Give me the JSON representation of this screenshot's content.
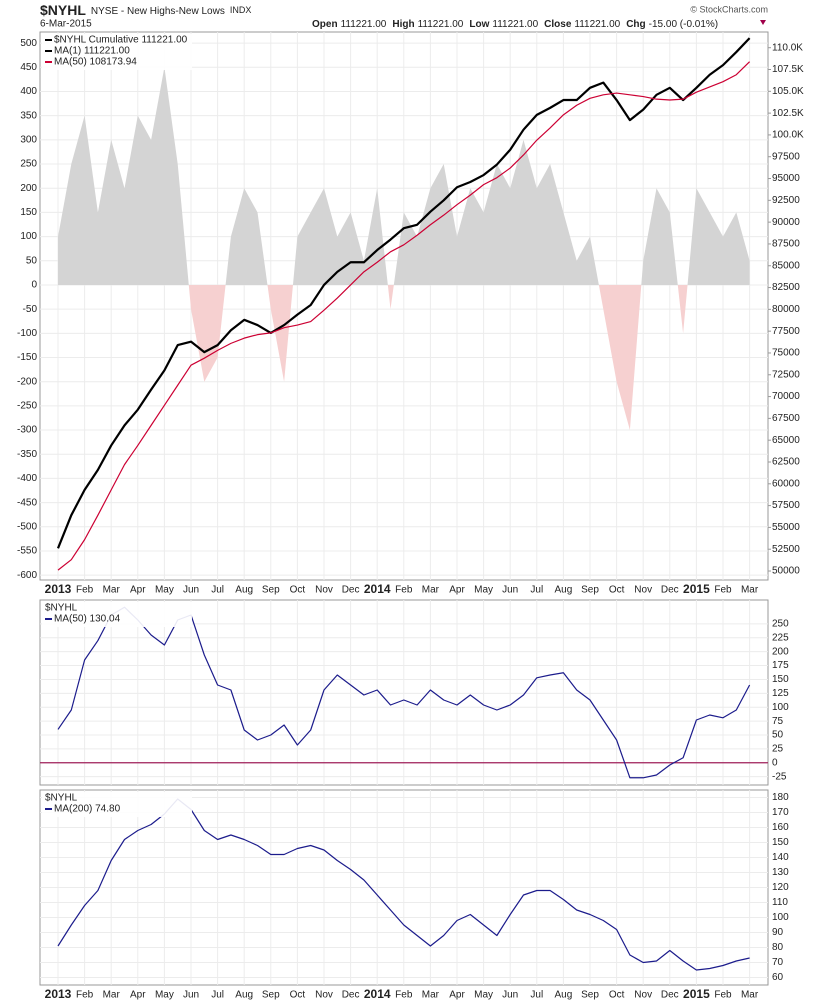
{
  "header": {
    "symbol": "$NYHL",
    "description": "NYSE - New Highs-New Lows",
    "exchange": "INDX",
    "date": "6-Mar-2015",
    "ohlc": [
      {
        "label": "Open",
        "value": "111221.00"
      },
      {
        "label": "High",
        "value": "111221.00"
      },
      {
        "label": "Low",
        "value": "111221.00"
      },
      {
        "label": "Close",
        "value": "111221.00"
      },
      {
        "label": "Chg",
        "value": "-15.00 (-0.01%)"
      }
    ],
    "watermark": "© StockCharts.com"
  },
  "chart_data": [
    {
      "type": "line",
      "legend_title": "$NYHL Cumulative 111221.00",
      "legend_title_color": "#000000",
      "grid": true,
      "y_axis_side": "left",
      "categories": [
        "2013",
        null,
        "Feb",
        null,
        "Mar",
        null,
        "Apr",
        null,
        "May",
        null,
        "Jun",
        null,
        "Jul",
        null,
        "Aug",
        null,
        "Sep",
        null,
        "Oct",
        null,
        "Nov",
        null,
        "Dec",
        null,
        "2014",
        null,
        "Feb",
        null,
        "Mar",
        null,
        "Apr",
        null,
        "May",
        null,
        "Jun",
        null,
        "Jul",
        null,
        "Aug",
        null,
        "Sep",
        null,
        "Oct",
        null,
        "Nov",
        null,
        "Dec",
        null,
        "2015",
        null,
        "Feb",
        null,
        "Mar"
      ],
      "ylim": [
        -610,
        523
      ],
      "yticks": [
        -600,
        -550,
        -500,
        -450,
        -400,
        -350,
        -300,
        -250,
        -200,
        -150,
        -100,
        -50,
        0,
        50,
        100,
        150,
        200,
        250,
        300,
        350,
        400,
        450,
        500
      ],
      "y2lim": [
        48970,
        111800
      ],
      "y2ticks": [
        50000,
        52500,
        55000,
        57500,
        60000,
        62500,
        65000,
        67500,
        70000,
        72500,
        75000,
        77500,
        80000,
        82500,
        85000,
        87500,
        90000,
        92500,
        95000,
        97500,
        {
          "value": 100000,
          "label": "100.0K"
        },
        {
          "value": 102500,
          "label": "102.5K"
        },
        {
          "value": 105000,
          "label": "105.0K"
        },
        {
          "value": 107500,
          "label": "107.5K"
        },
        {
          "value": 110000,
          "label": "110.0K"
        }
      ],
      "series": [
        {
          "type": "area",
          "color": "#d4d4d4",
          "negative_color": "#f6d0d0",
          "values": [
            100,
            250,
            350,
            150,
            300,
            200,
            350,
            300,
            450,
            250,
            -50,
            -200,
            -150,
            100,
            200,
            150,
            -50,
            -200,
            100,
            150,
            200,
            100,
            150,
            50,
            200,
            -50,
            150,
            100,
            200,
            250,
            100,
            200,
            150,
            250,
            200,
            300,
            200,
            250,
            150,
            50,
            100,
            -50,
            -200,
            -300,
            50,
            200,
            150,
            -100,
            200,
            150,
            100,
            150,
            50
          ]
        },
        {
          "name": "MA(1) 111221.00",
          "color": "#000000",
          "width": 2.2,
          "axis": "y2",
          "values": [
            52600,
            56400,
            59300,
            61600,
            64400,
            66700,
            68500,
            70800,
            73000,
            75900,
            76300,
            75100,
            75900,
            77600,
            78800,
            78200,
            77300,
            78200,
            79400,
            80500,
            82800,
            84300,
            85400,
            85400,
            86800,
            88000,
            89300,
            89700,
            91200,
            92500,
            94000,
            94600,
            95400,
            96600,
            98300,
            100600,
            102300,
            103100,
            104000,
            104000,
            105400,
            106000,
            104000,
            101700,
            102900,
            104600,
            105400,
            104000,
            105400,
            106900,
            108000,
            109500,
            111100
          ]
        },
        {
          "name": "MA(50) 108173.94",
          "color": "#cc0033",
          "width": 1.2,
          "axis": "y2",
          "values": [
            50100,
            51300,
            53600,
            56400,
            59300,
            62200,
            64400,
            66700,
            69000,
            71300,
            73600,
            74400,
            75300,
            76100,
            76700,
            77100,
            77300,
            77900,
            78200,
            78600,
            79900,
            81300,
            82800,
            84300,
            85400,
            86600,
            87400,
            88500,
            89700,
            90800,
            92000,
            93100,
            94300,
            95100,
            96200,
            97700,
            99400,
            100800,
            102300,
            103400,
            104200,
            104600,
            104800,
            104600,
            104400,
            104100,
            104000,
            104100,
            104900,
            105500,
            106100,
            106900,
            108400
          ]
        }
      ]
    },
    {
      "type": "line",
      "legend_title": "$NYHL",
      "grid": true,
      "y_axis_side": "right",
      "ylim": [
        -40,
        293
      ],
      "yticks": [
        -25,
        0,
        25,
        50,
        75,
        100,
        125,
        150,
        175,
        200,
        225,
        250
      ],
      "hline": 0,
      "hline_color": "#a0205a",
      "series": [
        {
          "name": "MA(50) 130.04",
          "color": "#1c1c8c",
          "width": 1.2,
          "values": [
            60,
            95,
            185,
            220,
            266,
            280,
            257,
            230,
            212,
            257,
            266,
            194,
            140,
            131,
            59,
            41,
            50,
            68,
            32,
            59,
            131,
            158,
            140,
            122,
            131,
            104,
            113,
            104,
            131,
            113,
            104,
            122,
            104,
            95,
            104,
            122,
            153,
            158,
            162,
            131,
            113,
            77,
            41,
            -27,
            -27,
            -22,
            -4,
            9,
            77,
            86,
            81,
            95,
            140
          ]
        }
      ]
    },
    {
      "type": "line",
      "legend_title": "$NYHL",
      "grid": true,
      "y_axis_side": "right",
      "ylim": [
        55,
        185
      ],
      "yticks": [
        60,
        70,
        80,
        90,
        100,
        110,
        120,
        130,
        140,
        150,
        160,
        170,
        180
      ],
      "categories": [
        "2013",
        null,
        "Feb",
        null,
        "Mar",
        null,
        "Apr",
        null,
        "May",
        null,
        "Jun",
        null,
        "Jul",
        null,
        "Aug",
        null,
        "Sep",
        null,
        "Oct",
        null,
        "Nov",
        null,
        "Dec",
        null,
        "2014",
        null,
        "Feb",
        null,
        "Mar",
        null,
        "Apr",
        null,
        "May",
        null,
        "Jun",
        null,
        "Jul",
        null,
        "Aug",
        null,
        "Sep",
        null,
        "Oct",
        null,
        "Nov",
        null,
        "Dec",
        null,
        "2015",
        null,
        "Feb",
        null,
        "Mar"
      ],
      "series": [
        {
          "name": "MA(200) 74.80",
          "color": "#1c1c8c",
          "width": 1.2,
          "values": [
            81,
            95,
            108,
            118,
            138,
            152,
            158,
            162,
            169,
            179,
            172,
            158,
            152,
            155,
            152,
            148,
            142,
            142,
            146,
            148,
            145,
            138,
            132,
            125,
            115,
            105,
            95,
            88,
            81,
            88,
            98,
            102,
            95,
            88,
            102,
            115,
            118,
            118,
            112,
            105,
            102,
            98,
            92,
            75,
            70,
            71,
            78,
            71,
            65,
            66,
            68,
            71,
            73
          ]
        }
      ]
    }
  ]
}
